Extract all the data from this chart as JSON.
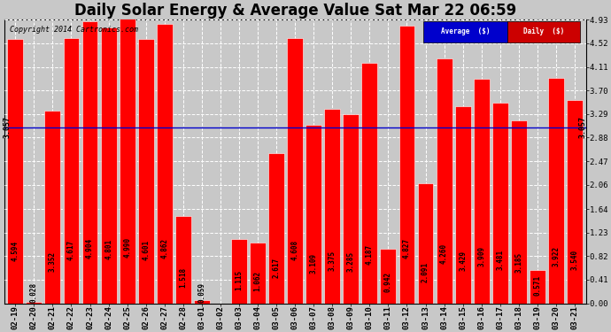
{
  "title": "Daily Solar Energy & Average Value Sat Mar 22 06:59",
  "copyright": "Copyright 2014 Cartronics.com",
  "categories": [
    "02-19",
    "02-20",
    "02-21",
    "02-22",
    "02-23",
    "02-24",
    "02-25",
    "02-26",
    "02-27",
    "02-28",
    "03-01",
    "03-02",
    "03-03",
    "03-04",
    "03-05",
    "03-06",
    "03-07",
    "03-08",
    "03-09",
    "03-10",
    "03-11",
    "03-12",
    "03-13",
    "03-14",
    "03-15",
    "03-16",
    "03-17",
    "03-18",
    "03-19",
    "03-20",
    "03-21"
  ],
  "values": [
    4.594,
    0.028,
    3.352,
    4.617,
    4.904,
    4.801,
    4.99,
    4.601,
    4.862,
    1.518,
    0.059,
    0.0,
    1.115,
    1.062,
    2.617,
    4.608,
    3.109,
    3.375,
    3.285,
    4.187,
    0.942,
    4.827,
    2.091,
    4.26,
    3.429,
    3.909,
    3.481,
    3.185,
    0.571,
    3.922,
    3.54
  ],
  "average_value": 3.057,
  "bar_color": "#ff0000",
  "average_line_color": "#0000cc",
  "average_label": "Average  ($)",
  "daily_label": "Daily  ($)",
  "average_legend_bg": "#0000cc",
  "daily_legend_bg": "#cc0000",
  "ylim": [
    0.0,
    4.93
  ],
  "yticks": [
    0.0,
    0.41,
    0.82,
    1.23,
    1.64,
    2.06,
    2.47,
    2.88,
    3.29,
    3.7,
    4.11,
    4.52,
    4.93
  ],
  "background_color": "#c8c8c8",
  "plot_bg_color": "#c8c8c8",
  "grid_color": "#ffffff",
  "title_fontsize": 12,
  "tick_fontsize": 6.5,
  "bar_edge_color": "#990000",
  "avg_annotation": "3.057",
  "label_fontsize": 5.5
}
